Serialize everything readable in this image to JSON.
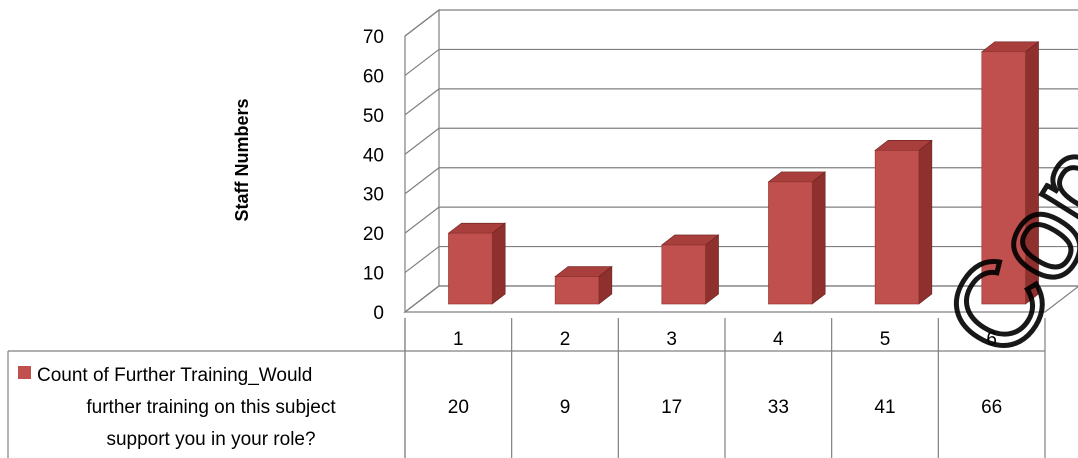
{
  "chart_data": {
    "type": "bar",
    "three_d": true,
    "categories": [
      "1",
      "2",
      "3",
      "4",
      "5",
      "6"
    ],
    "series": [
      {
        "name": "Count of Further Training_Would further training on this subject support you in your role?",
        "name_lines": [
          "Count of Further Training_Would",
          "further training on this subject",
          "support you in your role?"
        ],
        "values": [
          20,
          9,
          17,
          33,
          41,
          66
        ],
        "color": "#c0504d"
      }
    ],
    "ylabel": "Staff Numbers",
    "ylim": [
      0,
      70
    ],
    "yticks": [
      "0",
      "10",
      "20",
      "30",
      "40",
      "50",
      "60",
      "70"
    ],
    "grid": true,
    "legend": "data-table"
  },
  "watermark": {
    "text": "Cop"
  }
}
